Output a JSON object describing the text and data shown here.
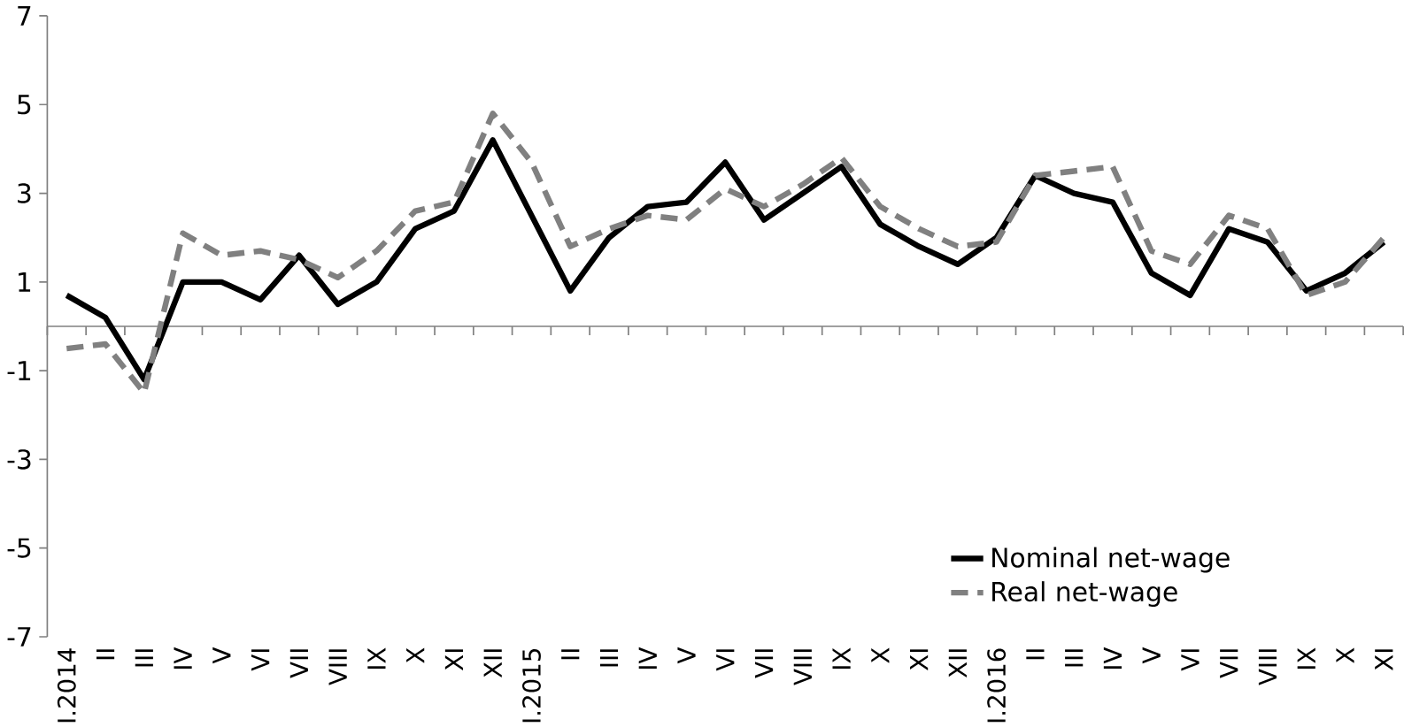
{
  "chart_data": {
    "type": "line",
    "categories": [
      "I.2014",
      "II",
      "III",
      "IV",
      "V",
      "VI",
      "VII",
      "VIII",
      "IX",
      "X",
      "XI",
      "XII",
      "I.2015",
      "II",
      "III",
      "IV",
      "V",
      "VI",
      "VII",
      "VIII",
      "IX",
      "X",
      "XI",
      "XII",
      "I.2016",
      "II",
      "III",
      "IV",
      "V",
      "VI",
      "VII",
      "VIII",
      "IX",
      "X",
      "XI"
    ],
    "series": [
      {
        "name": "Nominal net-wage",
        "color": "#000000",
        "line_style": "solid",
        "values": [
          0.7,
          0.2,
          -1.2,
          1.0,
          1.0,
          0.6,
          1.6,
          0.5,
          1.0,
          2.2,
          2.6,
          4.2,
          2.5,
          0.8,
          2.0,
          2.7,
          2.8,
          3.7,
          2.4,
          3.0,
          3.6,
          2.3,
          1.8,
          1.4,
          2.0,
          3.4,
          3.0,
          2.8,
          1.2,
          0.7,
          2.2,
          1.9,
          0.8,
          1.2,
          1.9
        ]
      },
      {
        "name": "Real net-wage",
        "color": "#808080",
        "line_style": "dashed",
        "values": [
          -0.5,
          -0.4,
          -1.5,
          2.1,
          1.6,
          1.7,
          1.5,
          1.1,
          1.7,
          2.6,
          2.8,
          4.8,
          3.7,
          1.8,
          2.2,
          2.5,
          2.4,
          3.1,
          2.7,
          3.2,
          3.8,
          2.7,
          2.2,
          1.8,
          1.9,
          3.4,
          3.5,
          3.6,
          1.7,
          1.4,
          2.5,
          2.2,
          0.7,
          1.0,
          2.0
        ]
      }
    ],
    "ylim": [
      -7,
      7
    ],
    "yticks": [
      -7,
      -5,
      -3,
      -1,
      1,
      3,
      5,
      7
    ],
    "grid": false,
    "legend": "bottom right",
    "marker": "none"
  }
}
